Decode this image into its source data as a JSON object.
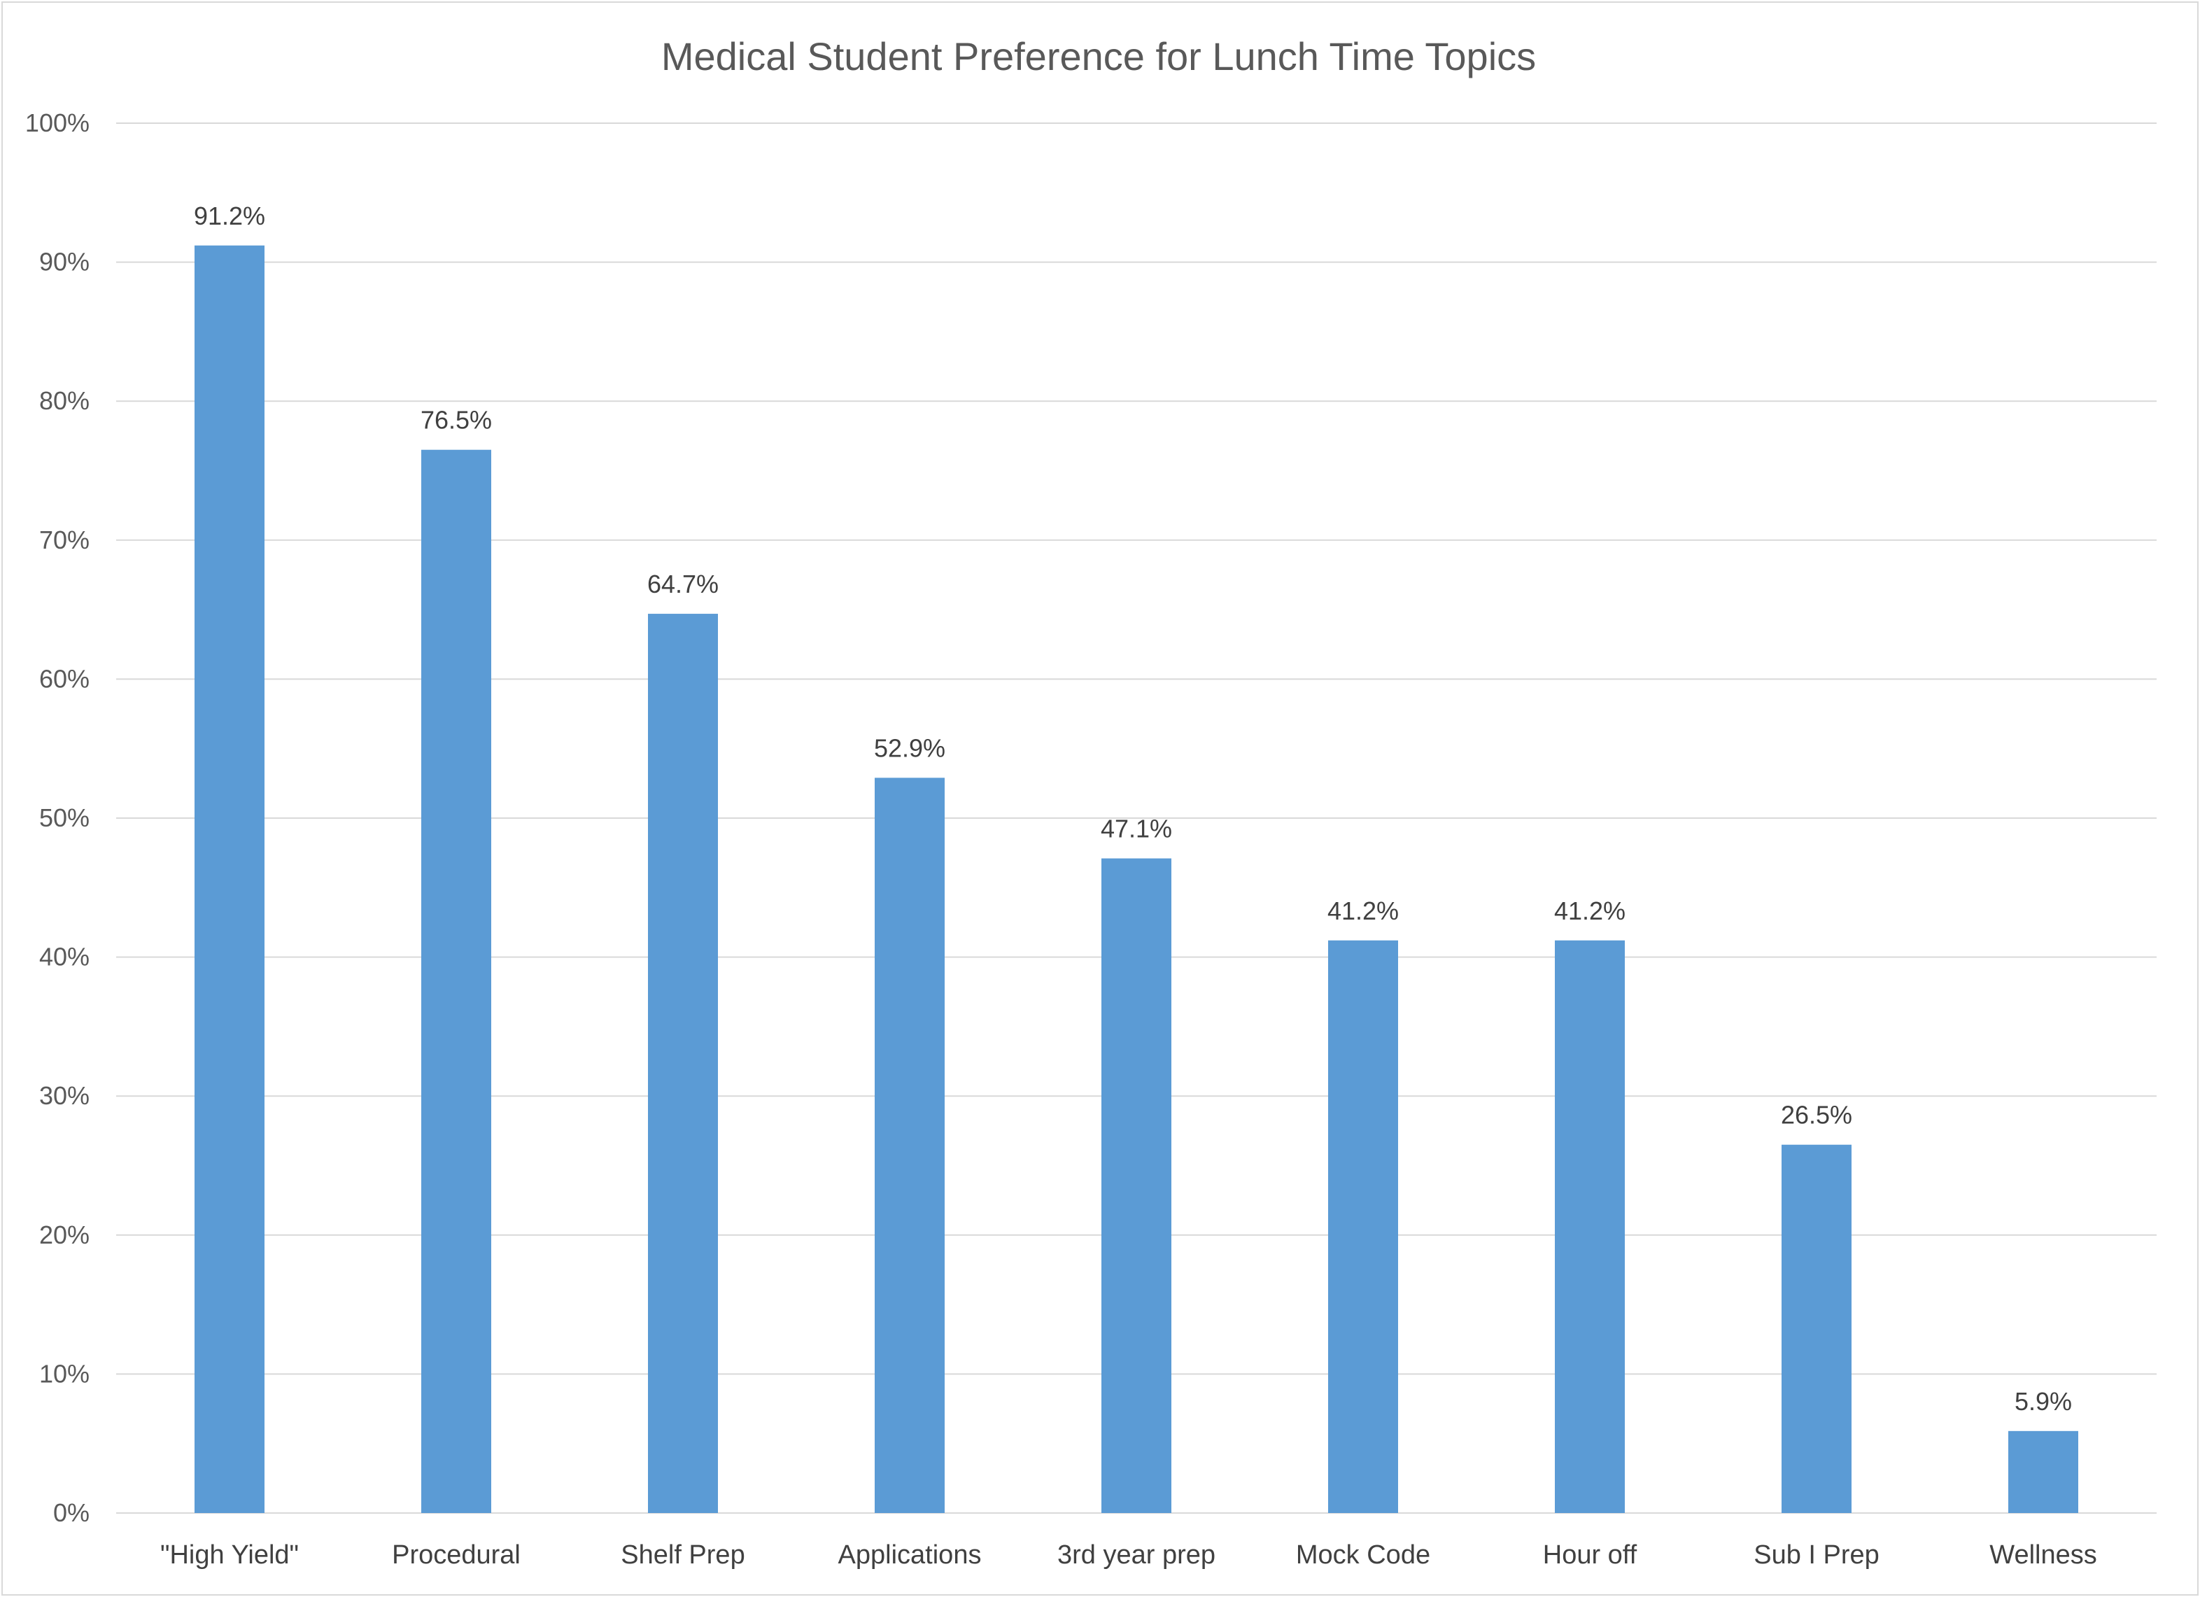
{
  "chart_data": {
    "type": "bar",
    "title": "Medical Student Preference for Lunch Time Topics",
    "xlabel": "",
    "ylabel": "",
    "categories": [
      "\"High Yield\"",
      "Procedural",
      "Shelf Prep",
      "Applications",
      "3rd year prep",
      "Mock Code",
      "Hour off",
      "Sub I Prep",
      "Wellness"
    ],
    "values": [
      91.2,
      76.5,
      64.7,
      52.9,
      47.1,
      41.2,
      41.2,
      26.5,
      5.9
    ],
    "data_labels": [
      "91.2%",
      "76.5%",
      "64.7%",
      "52.9%",
      "47.1%",
      "41.2%",
      "41.2%",
      "26.5%",
      "5.9%"
    ],
    "ylim": [
      0,
      100
    ],
    "yticks": [
      0,
      10,
      20,
      30,
      40,
      50,
      60,
      70,
      80,
      90,
      100
    ],
    "ytick_labels": [
      "0%",
      "10%",
      "20%",
      "30%",
      "40%",
      "50%",
      "60%",
      "70%",
      "80%",
      "90%",
      "100%"
    ],
    "grid": true,
    "legend": "none",
    "colors": {
      "bar": "#5b9bd5",
      "gridline": "#d9d9d9",
      "title": "#595959",
      "axis_text": "#595959",
      "label_text": "#404040"
    }
  }
}
